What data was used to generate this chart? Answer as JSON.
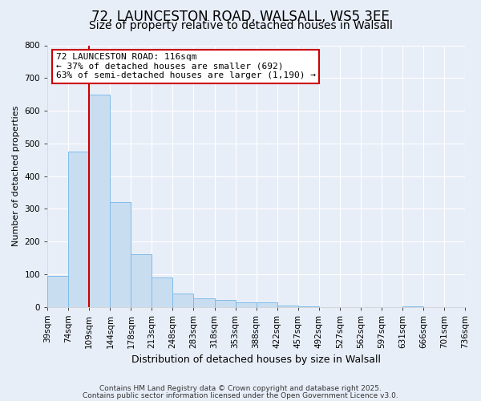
{
  "title": "72, LAUNCESTON ROAD, WALSALL, WS5 3EE",
  "subtitle": "Size of property relative to detached houses in Walsall",
  "xlabel": "Distribution of detached houses by size in Walsall",
  "ylabel": "Number of detached properties",
  "bar_values": [
    95,
    475,
    650,
    320,
    160,
    90,
    40,
    27,
    22,
    14,
    13,
    4,
    1,
    0,
    0,
    0,
    0,
    1,
    0,
    0
  ],
  "bar_labels": [
    "39sqm",
    "74sqm",
    "109sqm",
    "144sqm",
    "178sqm",
    "213sqm",
    "248sqm",
    "283sqm",
    "318sqm",
    "353sqm",
    "388sqm",
    "422sqm",
    "457sqm",
    "492sqm",
    "527sqm",
    "562sqm",
    "597sqm",
    "631sqm",
    "666sqm",
    "701sqm",
    "736sqm"
  ],
  "bar_color": "#c9ddf0",
  "bar_edge_color": "#7fbce8",
  "vline_color": "#cc0000",
  "vline_pos": 1.5,
  "annotation_box_text": "72 LAUNCESTON ROAD: 116sqm\n← 37% of detached houses are smaller (692)\n63% of semi-detached houses are larger (1,190) →",
  "ylim": [
    0,
    800
  ],
  "yticks": [
    0,
    100,
    200,
    300,
    400,
    500,
    600,
    700,
    800
  ],
  "bg_color": "#e8eef8",
  "plot_bg_color": "#e8eef8",
  "footer1": "Contains HM Land Registry data © Crown copyright and database right 2025.",
  "footer2": "Contains public sector information licensed under the Open Government Licence v3.0.",
  "title_fontsize": 12,
  "subtitle_fontsize": 10,
  "xlabel_fontsize": 9,
  "ylabel_fontsize": 8,
  "tick_fontsize": 7.5,
  "footer_fontsize": 6.5,
  "annotation_fontsize": 8
}
